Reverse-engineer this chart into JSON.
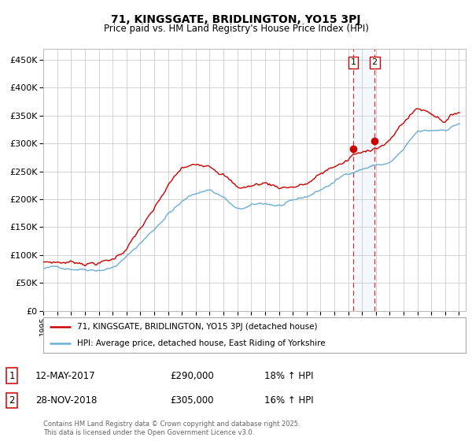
{
  "title1": "71, KINGSGATE, BRIDLINGTON, YO15 3PJ",
  "title2": "Price paid vs. HM Land Registry's House Price Index (HPI)",
  "legend_line1": "71, KINGSGATE, BRIDLINGTON, YO15 3PJ (detached house)",
  "legend_line2": "HPI: Average price, detached house, East Riding of Yorkshire",
  "transaction1_label": "1",
  "transaction1_date": "12-MAY-2017",
  "transaction1_price": "£290,000",
  "transaction1_hpi": "18% ↑ HPI",
  "transaction2_label": "2",
  "transaction2_date": "28-NOV-2018",
  "transaction2_price": "£305,000",
  "transaction2_hpi": "16% ↑ HPI",
  "footer": "Contains HM Land Registry data © Crown copyright and database right 2025.\nThis data is licensed under the Open Government Licence v3.0.",
  "red_color": "#cc0000",
  "blue_color": "#6baed6",
  "background_color": "#ffffff",
  "grid_color": "#cccccc",
  "ylim": [
    0,
    470000
  ],
  "yticks": [
    0,
    50000,
    100000,
    150000,
    200000,
    250000,
    300000,
    350000,
    400000,
    450000
  ],
  "transaction1_x": 2017.36,
  "transaction1_y": 290000,
  "transaction2_x": 2018.91,
  "transaction2_y": 305000,
  "xlim_start": 1995,
  "xlim_end": 2025.5
}
